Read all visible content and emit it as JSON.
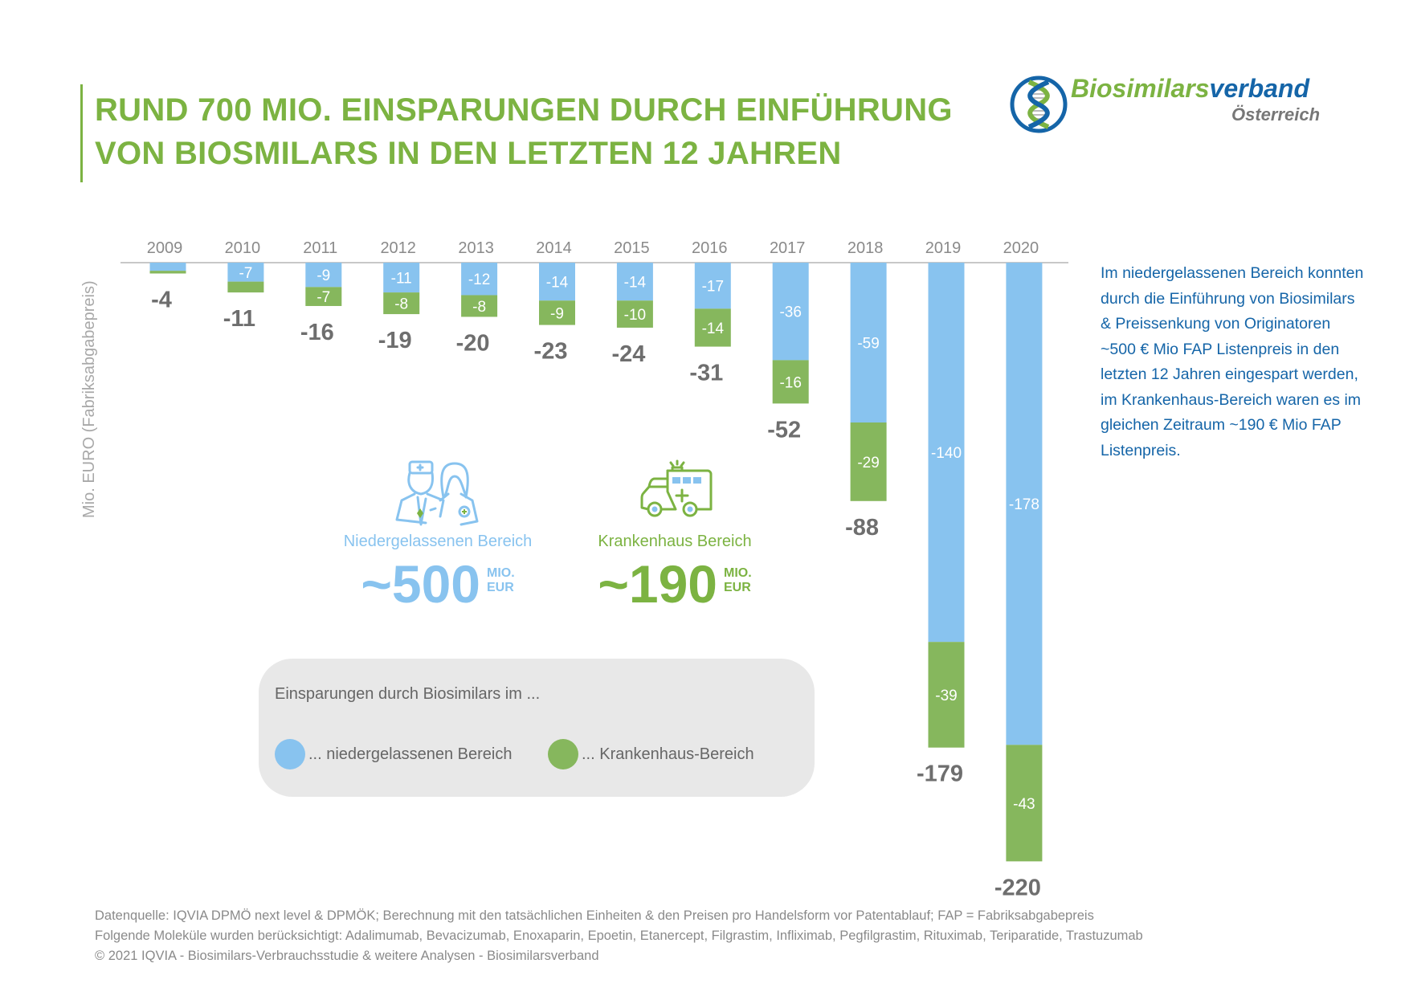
{
  "header": {
    "title_line1": "RUND 700 MIO. EINSPARUNGEN DURCH EINFÜHRUNG",
    "title_line2": "VON BIOSMILARS IN DEN LETZTEN 12 JAHREN"
  },
  "logo": {
    "name_green": "Biosimilars",
    "name_blue": "verband",
    "subtitle": "Österreich",
    "icon": "dna-helix-icon"
  },
  "side_text": "Im niedergelassenen Bereich konnten durch die Einführung von Biosimilars & Preissenkung von Originatoren ~500 € Mio FAP Listenpreis in den letzten 12 Jahren eingespart werden, im Krankenhaus-Bereich waren es im gleichen Zeitraum ~190 € Mio FAP Listenpreis.",
  "stats": [
    {
      "label": "Niedergelassenen Bereich",
      "value": "~500",
      "unit_line1": "MIO.",
      "unit_line2": "EUR",
      "icon": "doctors-icon",
      "color": "#88c3ef"
    },
    {
      "label": "Krankenhaus Bereich",
      "value": "~190",
      "unit_line1": "MIO.",
      "unit_line2": "EUR",
      "icon": "ambulance-icon",
      "color": "#7cb342"
    }
  ],
  "legend": {
    "title": "Einsparungen durch Biosimilars im ...",
    "items": [
      {
        "label": "... niedergelassenen Bereich",
        "color": "#88c3ef"
      },
      {
        "label": "... Krankenhaus-Bereich",
        "color": "#86b75d"
      }
    ]
  },
  "footer": {
    "line1": "Datenquelle: IQVIA DPMÖ next level & DPMÖK; Berechnung mit den tatsächlichen Einheiten & den Preisen pro Handelsform vor Patentablauf; FAP = Fabriksabgabepreis",
    "line2": "Folgende Moleküle wurden berücksichtigt: Adalimumab, Bevacizumab, Enoxaparin, Epoetin, Etanercept, Filgrastim, Infliximab, Pegfilgrastim, Rituximab, Teriparatide, Trastuzumab",
    "line3": "© 2021 IQVIA - Biosimilars-Verbrauchsstudie & weitere Analysen - Biosimilarsverband"
  },
  "chart_data": {
    "type": "bar",
    "stacked": true,
    "title": "RUND 700 MIO. EINSPARUNGEN DURCH EINFÜHRUNG VON BIOSMILARS IN DEN LETZTEN 12 JAHREN",
    "xlabel": "",
    "ylabel": "Mio. EURO (Fabriksabgabepreis)",
    "categories": [
      "2009",
      "2010",
      "2011",
      "2012",
      "2013",
      "2014",
      "2015",
      "2016",
      "2017",
      "2018",
      "2019",
      "2020"
    ],
    "series": [
      {
        "name": "... niedergelassenen Bereich",
        "color": "#88c3ef",
        "values": [
          -3,
          -7,
          -9,
          -11,
          -12,
          -14,
          -14,
          -17,
          -36,
          -59,
          -140,
          -178
        ],
        "labels": [
          "",
          "-7",
          "-9",
          "-11",
          "-12",
          "-14",
          "-14",
          "-17",
          "-36",
          "-59",
          "-140",
          "-178"
        ]
      },
      {
        "name": "... Krankenhaus-Bereich",
        "color": "#86b75d",
        "values": [
          -1,
          -4,
          -7,
          -8,
          -8,
          -9,
          -10,
          -14,
          -16,
          -29,
          -39,
          -43
        ],
        "labels": [
          "",
          "",
          "-7",
          "-8",
          "-8",
          "-9",
          "-10",
          "-14",
          "-16",
          "-29",
          "-39",
          "-43"
        ]
      }
    ],
    "totals": [
      -4,
      -11,
      -16,
      -19,
      -20,
      -23,
      -24,
      -31,
      -52,
      -88,
      -179,
      -220
    ],
    "ylim": [
      -220,
      0
    ],
    "axis_position": "top",
    "grid": false,
    "legend_position": "bottom-left"
  }
}
